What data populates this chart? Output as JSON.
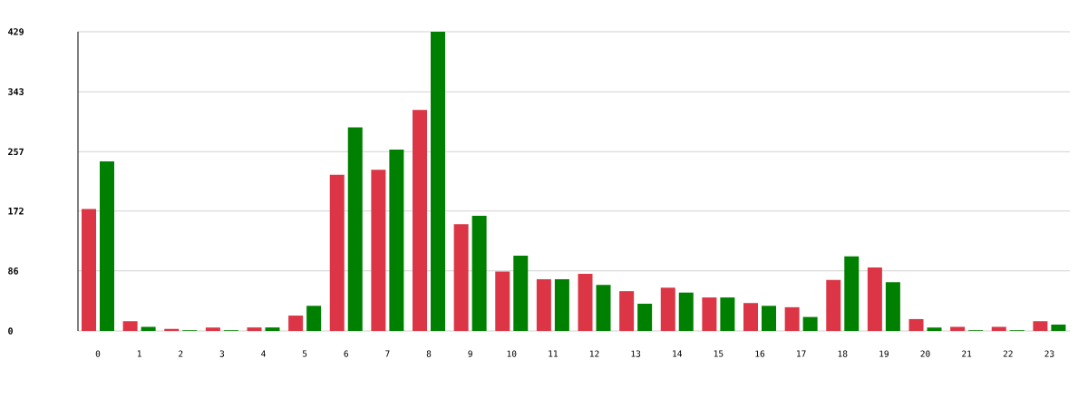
{
  "chart_data": {
    "type": "bar",
    "categories": [
      "0",
      "1",
      "2",
      "3",
      "4",
      "5",
      "6",
      "7",
      "8",
      "9",
      "10",
      "11",
      "12",
      "13",
      "14",
      "15",
      "16",
      "17",
      "18",
      "19",
      "20",
      "21",
      "22",
      "23"
    ],
    "series": [
      {
        "color": "#dc3545",
        "values": [
          175,
          14,
          3,
          5,
          5,
          22,
          224,
          231,
          317,
          153,
          85,
          74,
          82,
          57,
          62,
          48,
          40,
          34,
          73,
          91,
          17,
          6,
          6,
          14
        ]
      },
      {
        "color": "#008000",
        "values": [
          243,
          6,
          1,
          1,
          5,
          36,
          292,
          260,
          429,
          165,
          108,
          74,
          66,
          39,
          55,
          48,
          36,
          20,
          107,
          70,
          5,
          1,
          1,
          9
        ]
      }
    ],
    "ylim": [
      0,
      429
    ],
    "yticks": [
      0,
      86,
      172,
      257,
      343,
      429
    ],
    "grid": "y"
  }
}
